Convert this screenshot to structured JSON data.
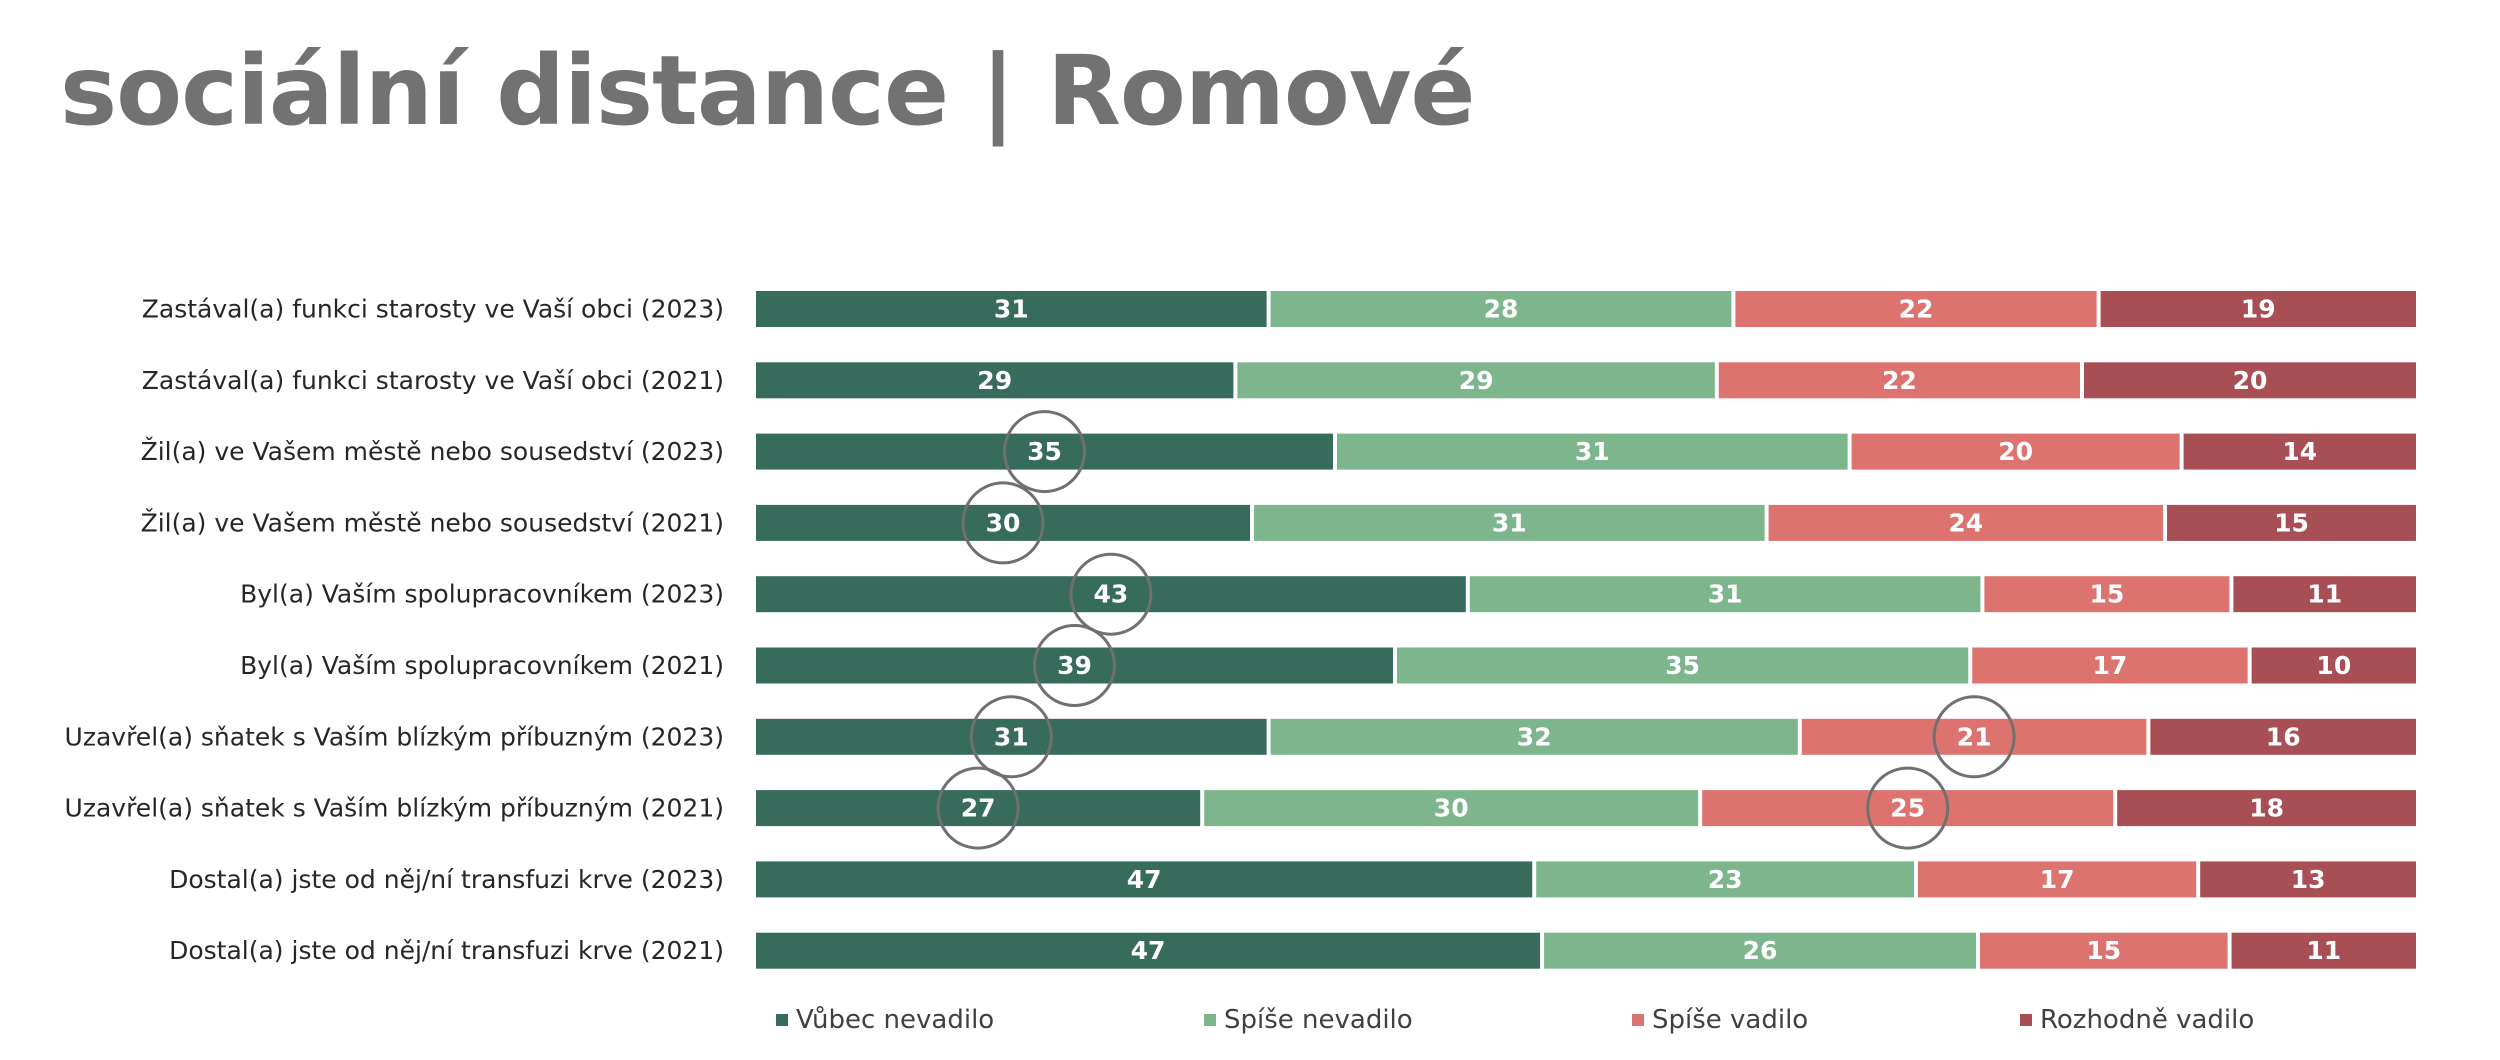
{
  "page": {
    "title": "sociální distance | Romové"
  },
  "chart_data": {
    "type": "bar",
    "orientation": "horizontal",
    "stacked": true,
    "percent_stacked": true,
    "title": "",
    "xlabel": "",
    "ylabel": "",
    "grid": false,
    "legend_position": "bottom",
    "categories": [
      "Zastával(a) funkci starosty ve Vaší obci (2023)",
      "Zastával(a) funkci starosty ve Vaší obci (2021)",
      "Žil(a) ve Vašem městě nebo sousedství  (2023)",
      "Žil(a) ve Vašem městě nebo sousedství  (2021)",
      "Byl(a) Vaším spolupracovníkem (2023)",
      "Byl(a) Vaším spolupracovníkem (2021)",
      "Uzavřel(a) sňatek s Vaším blízkým příbuzným (2023)",
      "Uzavřel(a) sňatek s Vaším blízkým příbuzným  (2021)",
      "Dostal(a) jste od něj/ní transfuzi krve (2023)",
      "Dostal(a) jste od něj/ní transfuzi krve (2021)"
    ],
    "series": [
      {
        "name": "Vůbec nevadilo",
        "color": "#376b5b",
        "values": [
          31,
          29,
          35,
          30,
          43,
          39,
          31,
          27,
          47,
          47
        ]
      },
      {
        "name": "Spíše nevadilo",
        "color": "#7db58d",
        "values": [
          28,
          29,
          31,
          31,
          31,
          35,
          32,
          30,
          23,
          26
        ]
      },
      {
        "name": "Spíše vadilo",
        "color": "#dd736f",
        "values": [
          22,
          22,
          20,
          24,
          15,
          17,
          21,
          25,
          17,
          15
        ]
      },
      {
        "name": "Rozhodně vadilo",
        "color": "#a84e55",
        "values": [
          19,
          20,
          14,
          15,
          11,
          10,
          16,
          18,
          13,
          11
        ]
      }
    ],
    "highlighted_values": [
      {
        "category_index": 2,
        "series_index": 0
      },
      {
        "category_index": 3,
        "series_index": 0
      },
      {
        "category_index": 4,
        "series_index": 0
      },
      {
        "category_index": 5,
        "series_index": 0
      },
      {
        "category_index": 6,
        "series_index": 0
      },
      {
        "category_index": 7,
        "series_index": 0
      },
      {
        "category_index": 6,
        "series_index": 2
      },
      {
        "category_index": 7,
        "series_index": 2
      }
    ]
  }
}
